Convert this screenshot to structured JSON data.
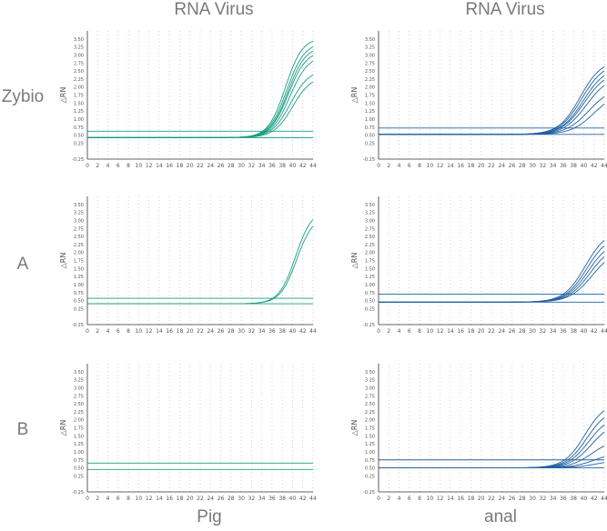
{
  "column_titles": [
    "RNA Virus",
    "RNA Virus"
  ],
  "row_labels": [
    "Zybio",
    "A",
    "B"
  ],
  "bottom_labels": [
    "Pig",
    "anal"
  ],
  "colors": {
    "pig": "#1a9e82",
    "anal": "#2060a0",
    "grid": "#c8c8c8",
    "axis": "#333333",
    "tick": "#555555"
  },
  "chart_data": [
    {
      "type": "line",
      "panel": "Zybio-Pig",
      "color": "#1a9e82",
      "ylabel": "△RN",
      "x_ticks": [
        0,
        2,
        4,
        6,
        8,
        10,
        12,
        14,
        16,
        18,
        20,
        22,
        24,
        26,
        28,
        30,
        32,
        34,
        36,
        38,
        40,
        42,
        44
      ],
      "y_ticks": [
        "-0.25",
        "0.25",
        "0.50",
        "0.75",
        "1.00",
        "1.25",
        "1.50",
        "1.75",
        "2.00",
        "2.25",
        "2.50",
        "2.75",
        "3.00",
        "3.25",
        "3.50"
      ],
      "xlim": [
        0,
        44
      ],
      "ylim": [
        -0.25,
        3.75
      ],
      "thresholds": [
        0.62,
        0.42
      ],
      "series": [
        {
          "base": 0.42,
          "plateau": 3.55,
          "mid": 38.6,
          "k": 0.6
        },
        {
          "base": 0.42,
          "plateau": 3.4,
          "mid": 38.9,
          "k": 0.58
        },
        {
          "base": 0.42,
          "plateau": 3.28,
          "mid": 39.1,
          "k": 0.58
        },
        {
          "base": 0.42,
          "plateau": 3.15,
          "mid": 39.2,
          "k": 0.57
        },
        {
          "base": 0.42,
          "plateau": 3.0,
          "mid": 39.5,
          "k": 0.56
        },
        {
          "base": 0.42,
          "plateau": 2.55,
          "mid": 39.6,
          "k": 0.55
        },
        {
          "base": 0.42,
          "plateau": 2.35,
          "mid": 40.0,
          "k": 0.55
        }
      ]
    },
    {
      "type": "line",
      "panel": "Zybio-anal",
      "color": "#2060a0",
      "ylabel": "△RN",
      "x_ticks": [
        0,
        2,
        4,
        6,
        8,
        10,
        12,
        14,
        16,
        18,
        20,
        22,
        24,
        26,
        28,
        30,
        32,
        34,
        36,
        38,
        40,
        42,
        44
      ],
      "y_ticks": [
        "-0.25",
        "0.25",
        "0.50",
        "0.75",
        "1.00",
        "1.25",
        "1.50",
        "1.75",
        "2.00",
        "2.25",
        "2.50",
        "2.75",
        "3.00",
        "3.25",
        "3.50"
      ],
      "xlim": [
        0,
        44
      ],
      "ylim": [
        -0.25,
        3.75
      ],
      "thresholds": [
        0.72,
        0.52
      ],
      "series": [
        {
          "base": 0.52,
          "plateau": 2.85,
          "mid": 39.3,
          "k": 0.48
        },
        {
          "base": 0.52,
          "plateau": 2.75,
          "mid": 39.6,
          "k": 0.47
        },
        {
          "base": 0.52,
          "plateau": 2.62,
          "mid": 39.9,
          "k": 0.47
        },
        {
          "base": 0.52,
          "plateau": 2.5,
          "mid": 40.1,
          "k": 0.46
        },
        {
          "base": 0.52,
          "plateau": 2.35,
          "mid": 40.5,
          "k": 0.46
        },
        {
          "base": 0.52,
          "plateau": 2.0,
          "mid": 41.0,
          "k": 0.45
        },
        {
          "base": 0.52,
          "plateau": 1.85,
          "mid": 42.0,
          "k": 0.45
        }
      ]
    },
    {
      "type": "line",
      "panel": "A-Pig",
      "color": "#1a9e82",
      "ylabel": "△RN",
      "x_ticks": [
        0,
        2,
        4,
        6,
        8,
        10,
        12,
        14,
        16,
        18,
        20,
        22,
        24,
        26,
        28,
        30,
        32,
        34,
        36,
        38,
        40,
        42,
        44
      ],
      "y_ticks": [
        "-0.25",
        "0.25",
        "0.50",
        "0.75",
        "1.00",
        "1.25",
        "1.50",
        "1.75",
        "2.00",
        "2.25",
        "2.50",
        "2.75",
        "3.00",
        "3.25",
        "3.50"
      ],
      "xlim": [
        0,
        44
      ],
      "ylim": [
        -0.25,
        3.75
      ],
      "thresholds": [
        0.57,
        0.4
      ],
      "series": [
        {
          "base": 0.4,
          "plateau": 3.35,
          "mid": 40.6,
          "k": 0.62
        },
        {
          "base": 0.4,
          "plateau": 3.15,
          "mid": 40.8,
          "k": 0.62
        }
      ]
    },
    {
      "type": "line",
      "panel": "A-anal",
      "color": "#2060a0",
      "ylabel": "△RN",
      "x_ticks": [
        0,
        2,
        4,
        6,
        8,
        10,
        12,
        14,
        16,
        18,
        20,
        22,
        24,
        26,
        28,
        30,
        32,
        34,
        36,
        38,
        40,
        42,
        44
      ],
      "y_ticks": [
        "-0.25",
        "0.25",
        "0.50",
        "0.75",
        "1.00",
        "1.25",
        "1.50",
        "1.75",
        "2.00",
        "2.25",
        "2.50",
        "2.75",
        "3.00",
        "3.25",
        "3.50"
      ],
      "xlim": [
        0,
        44
      ],
      "ylim": [
        -0.25,
        3.75
      ],
      "thresholds": [
        0.7,
        0.45
      ],
      "series": [
        {
          "base": 0.45,
          "plateau": 2.7,
          "mid": 40.3,
          "k": 0.48
        },
        {
          "base": 0.45,
          "plateau": 2.55,
          "mid": 40.6,
          "k": 0.48
        },
        {
          "base": 0.45,
          "plateau": 2.4,
          "mid": 40.9,
          "k": 0.47
        },
        {
          "base": 0.45,
          "plateau": 2.25,
          "mid": 41.2,
          "k": 0.47
        },
        {
          "base": 0.45,
          "plateau": 2.1,
          "mid": 41.6,
          "k": 0.46
        }
      ]
    },
    {
      "type": "line",
      "panel": "B-Pig",
      "color": "#1a9e82",
      "ylabel": "△RN",
      "x_ticks": [
        0,
        2,
        4,
        6,
        8,
        10,
        12,
        14,
        16,
        18,
        20,
        22,
        24,
        26,
        28,
        30,
        32,
        34,
        36,
        38,
        40,
        42,
        44
      ],
      "y_ticks": [
        "-0.25",
        "0.25",
        "0.50",
        "0.75",
        "1.00",
        "1.25",
        "1.50",
        "1.75",
        "2.00",
        "2.25",
        "2.50",
        "2.75",
        "3.00",
        "3.25",
        "3.50"
      ],
      "xlim": [
        0,
        44
      ],
      "ylim": [
        -0.25,
        3.75
      ],
      "thresholds": [
        0.65,
        0.45
      ],
      "series": []
    },
    {
      "type": "line",
      "panel": "B-anal",
      "color": "#2060a0",
      "ylabel": "△RN",
      "x_ticks": [
        0,
        2,
        4,
        6,
        8,
        10,
        12,
        14,
        16,
        18,
        20,
        22,
        24,
        26,
        28,
        30,
        32,
        34,
        36,
        38,
        40,
        42,
        44
      ],
      "y_ticks": [
        "-0.25",
        "0.25",
        "0.50",
        "0.75",
        "1.00",
        "1.25",
        "1.50",
        "1.75",
        "2.00",
        "2.25",
        "2.50",
        "2.75",
        "3.00",
        "3.25",
        "3.50"
      ],
      "xlim": [
        0,
        44
      ],
      "ylim": [
        -0.25,
        3.75
      ],
      "thresholds": [
        0.75,
        0.5
      ],
      "series": [
        {
          "base": 0.5,
          "plateau": 2.55,
          "mid": 40.2,
          "k": 0.5
        },
        {
          "base": 0.5,
          "plateau": 2.35,
          "mid": 40.6,
          "k": 0.5
        },
        {
          "base": 0.5,
          "plateau": 2.15,
          "mid": 41.0,
          "k": 0.49
        },
        {
          "base": 0.5,
          "plateau": 1.95,
          "mid": 41.5,
          "k": 0.48
        },
        {
          "base": 0.5,
          "plateau": 1.4,
          "mid": 41.6,
          "k": 0.48
        },
        {
          "base": 0.5,
          "plateau": 1.0,
          "mid": 42.2,
          "k": 0.45
        },
        {
          "base": 0.5,
          "plateau": 0.75,
          "mid": 42.5,
          "k": 0.45
        }
      ]
    }
  ]
}
